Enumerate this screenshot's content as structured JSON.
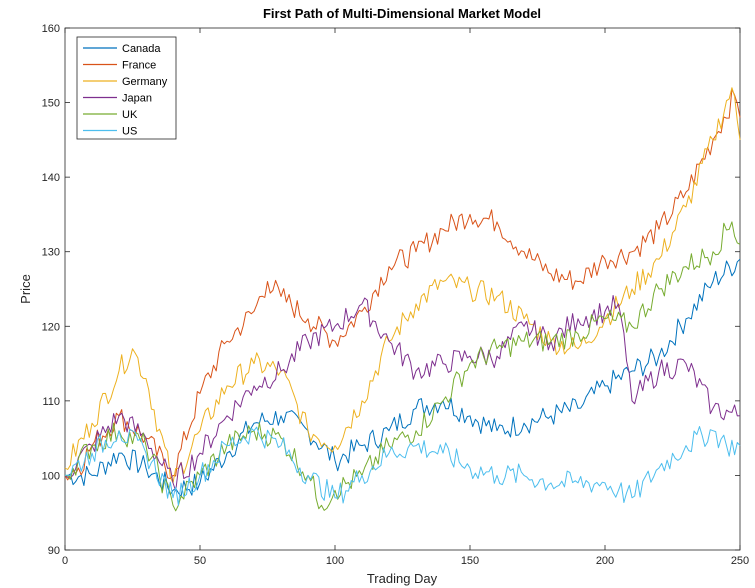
{
  "chart_data": {
    "type": "line",
    "title": "First Path of Multi-Dimensional Market Model",
    "xlabel": "Trading Day",
    "ylabel": "Price",
    "xlim": [
      0,
      250
    ],
    "ylim": [
      90,
      160
    ],
    "xticks": [
      0,
      50,
      100,
      150,
      200,
      250
    ],
    "yticks": [
      90,
      100,
      110,
      120,
      130,
      140,
      150,
      160
    ],
    "grid": false,
    "legend_position": "top-left",
    "series": [
      {
        "name": "Canada",
        "color": "#0072BD",
        "points": [
          [
            0,
            100
          ],
          [
            10,
            100
          ],
          [
            20,
            103
          ],
          [
            30,
            101
          ],
          [
            40,
            98
          ],
          [
            50,
            99
          ],
          [
            60,
            103
          ],
          [
            70,
            107
          ],
          [
            80,
            108
          ],
          [
            90,
            106
          ],
          [
            100,
            102
          ],
          [
            110,
            104
          ],
          [
            120,
            106
          ],
          [
            130,
            109
          ],
          [
            140,
            110
          ],
          [
            150,
            108
          ],
          [
            160,
            106
          ],
          [
            170,
            107
          ],
          [
            180,
            108
          ],
          [
            190,
            109
          ],
          [
            200,
            112
          ],
          [
            210,
            114
          ],
          [
            220,
            116
          ],
          [
            230,
            121
          ],
          [
            240,
            126
          ],
          [
            250,
            129
          ]
        ]
      },
      {
        "name": "France",
        "color": "#D95319",
        "points": [
          [
            0,
            100
          ],
          [
            5,
            101
          ],
          [
            10,
            104
          ],
          [
            20,
            108
          ],
          [
            30,
            105
          ],
          [
            40,
            100
          ],
          [
            50,
            111
          ],
          [
            60,
            118
          ],
          [
            70,
            122
          ],
          [
            75,
            126
          ],
          [
            80,
            124
          ],
          [
            90,
            121
          ],
          [
            100,
            118
          ],
          [
            110,
            122
          ],
          [
            120,
            128
          ],
          [
            130,
            130
          ],
          [
            140,
            133
          ],
          [
            150,
            135
          ],
          [
            160,
            134
          ],
          [
            170,
            130
          ],
          [
            180,
            127
          ],
          [
            190,
            126
          ],
          [
            200,
            129
          ],
          [
            210,
            130
          ],
          [
            220,
            133
          ],
          [
            230,
            138
          ],
          [
            240,
            145
          ],
          [
            248,
            151
          ],
          [
            250,
            148
          ]
        ]
      },
      {
        "name": "Germany",
        "color": "#EDB120",
        "points": [
          [
            0,
            101
          ],
          [
            10,
            107
          ],
          [
            20,
            114
          ],
          [
            25,
            117
          ],
          [
            30,
            113
          ],
          [
            40,
            99
          ],
          [
            50,
            106
          ],
          [
            60,
            112
          ],
          [
            70,
            115
          ],
          [
            80,
            114
          ],
          [
            90,
            106
          ],
          [
            100,
            104
          ],
          [
            110,
            110
          ],
          [
            120,
            118
          ],
          [
            130,
            123
          ],
          [
            140,
            126
          ],
          [
            150,
            125
          ],
          [
            160,
            124
          ],
          [
            170,
            121
          ],
          [
            180,
            118
          ],
          [
            190,
            117
          ],
          [
            200,
            121
          ],
          [
            210,
            125
          ],
          [
            220,
            129
          ],
          [
            230,
            136
          ],
          [
            240,
            145
          ],
          [
            247,
            152
          ],
          [
            250,
            145
          ]
        ]
      },
      {
        "name": "Japan",
        "color": "#7E2F8E",
        "points": [
          [
            0,
            100
          ],
          [
            10,
            104
          ],
          [
            20,
            108
          ],
          [
            30,
            105
          ],
          [
            40,
            99
          ],
          [
            50,
            103
          ],
          [
            60,
            108
          ],
          [
            70,
            112
          ],
          [
            80,
            114
          ],
          [
            90,
            118
          ],
          [
            100,
            120
          ],
          [
            110,
            123
          ],
          [
            120,
            118
          ],
          [
            130,
            114
          ],
          [
            140,
            115
          ],
          [
            150,
            116
          ],
          [
            160,
            116
          ],
          [
            170,
            120
          ],
          [
            180,
            118
          ],
          [
            190,
            121
          ],
          [
            200,
            122
          ],
          [
            205,
            123
          ],
          [
            210,
            110
          ],
          [
            220,
            114
          ],
          [
            230,
            115
          ],
          [
            240,
            109
          ],
          [
            250,
            108
          ]
        ]
      },
      {
        "name": "UK",
        "color": "#77AC30",
        "points": [
          [
            0,
            100
          ],
          [
            10,
            104
          ],
          [
            20,
            106
          ],
          [
            30,
            104
          ],
          [
            40,
            96
          ],
          [
            50,
            100
          ],
          [
            60,
            104
          ],
          [
            70,
            106
          ],
          [
            80,
            105
          ],
          [
            90,
            100
          ],
          [
            95,
            96
          ],
          [
            100,
            98
          ],
          [
            110,
            100
          ],
          [
            120,
            104
          ],
          [
            130,
            106
          ],
          [
            140,
            110
          ],
          [
            150,
            115
          ],
          [
            160,
            117
          ],
          [
            170,
            118
          ],
          [
            180,
            118
          ],
          [
            190,
            119
          ],
          [
            200,
            121
          ],
          [
            210,
            120
          ],
          [
            220,
            125
          ],
          [
            230,
            128
          ],
          [
            240,
            130
          ],
          [
            247,
            134
          ],
          [
            250,
            131
          ]
        ]
      },
      {
        "name": "US",
        "color": "#4DBEEE",
        "points": [
          [
            0,
            100
          ],
          [
            10,
            103
          ],
          [
            20,
            106
          ],
          [
            30,
            103
          ],
          [
            40,
            97
          ],
          [
            50,
            100
          ],
          [
            60,
            104
          ],
          [
            70,
            106
          ],
          [
            80,
            104
          ],
          [
            90,
            100
          ],
          [
            100,
            97
          ],
          [
            110,
            100
          ],
          [
            120,
            103
          ],
          [
            130,
            104
          ],
          [
            140,
            103
          ],
          [
            150,
            101
          ],
          [
            160,
            100
          ],
          [
            170,
            100
          ],
          [
            180,
            99
          ],
          [
            190,
            99
          ],
          [
            200,
            99
          ],
          [
            205,
            98
          ],
          [
            210,
            97
          ],
          [
            220,
            101
          ],
          [
            230,
            104
          ],
          [
            240,
            106
          ],
          [
            245,
            104
          ],
          [
            250,
            104
          ]
        ]
      }
    ]
  }
}
